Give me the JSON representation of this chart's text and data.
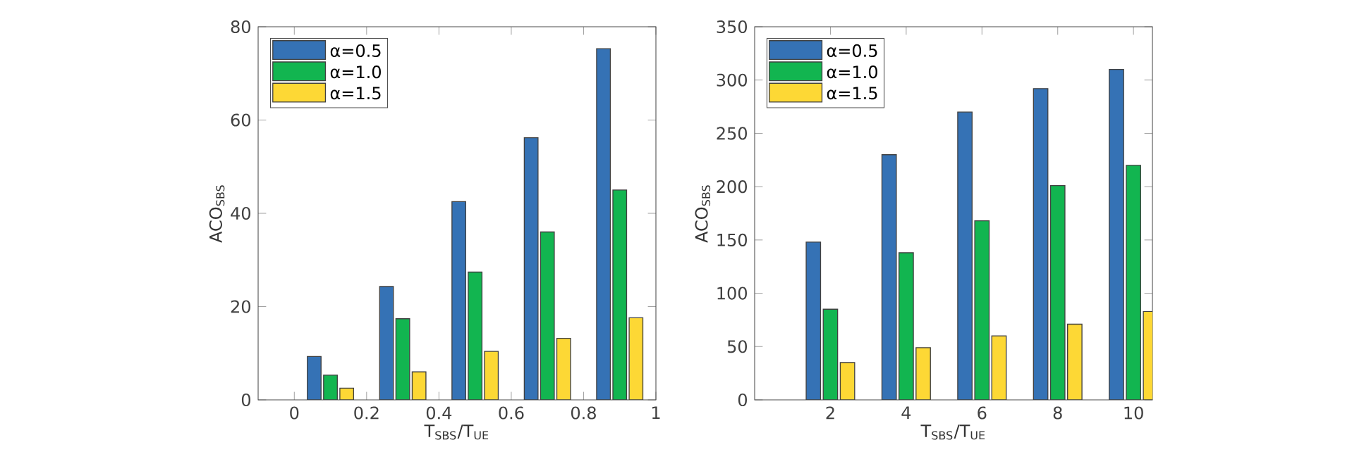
{
  "chart_data": [
    {
      "type": "bar",
      "xlabel": "T$_{SBS}$/T$_{UE}$",
      "ylabel": "ACO$_{SBS}$",
      "x": [
        0.1,
        0.3,
        0.5,
        0.7,
        0.9
      ],
      "series": [
        {
          "name": "α=0.5",
          "color": "#3572b5",
          "values": [
            9.3,
            24.3,
            42.5,
            56.2,
            75.3
          ]
        },
        {
          "name": "α=1.0",
          "color": "#12b550",
          "values": [
            5.3,
            17.4,
            27.4,
            36,
            45
          ]
        },
        {
          "name": "α=1.5",
          "color": "#fdd835",
          "values": [
            2.5,
            6,
            10.4,
            13.2,
            17.6
          ]
        }
      ],
      "xlim": [
        -0.1,
        1
      ],
      "ylim": [
        0,
        80
      ],
      "xticks": [
        0,
        0.2,
        0.4,
        0.6,
        0.8,
        1
      ],
      "yticks": [
        0,
        20,
        40,
        60,
        80
      ],
      "legend": "top left",
      "grid": false
    },
    {
      "type": "bar",
      "xlabel": "T$_{SBS}$/T$_{UE}$",
      "ylabel": "ACO$_{SBS}$",
      "x": [
        2,
        4,
        6,
        8,
        10
      ],
      "series": [
        {
          "name": "α=0.5",
          "color": "#3572b5",
          "values": [
            148,
            230,
            270,
            292,
            310
          ]
        },
        {
          "name": "α=1.0",
          "color": "#12b550",
          "values": [
            85,
            138,
            168,
            201,
            220
          ]
        },
        {
          "name": "α=1.5",
          "color": "#fdd835",
          "values": [
            35,
            49,
            60,
            71,
            83
          ]
        }
      ],
      "xlim": [
        0,
        10.5
      ],
      "ylim": [
        0,
        350
      ],
      "xticks": [
        2,
        4,
        6,
        8,
        10
      ],
      "yticks": [
        0,
        50,
        100,
        150,
        200,
        250,
        300,
        350
      ],
      "legend": "top left",
      "grid": false
    }
  ]
}
